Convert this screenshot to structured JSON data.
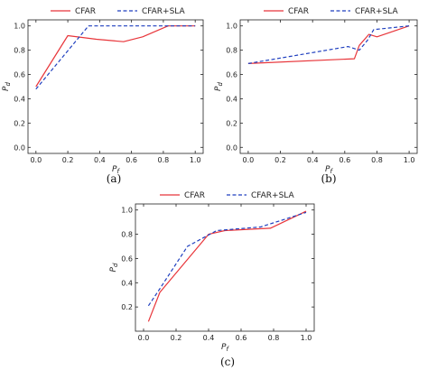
{
  "colors": {
    "cfar": "#e8353a",
    "cfar_sla": "#1f3fbf"
  },
  "chart_data": [
    {
      "id": "a",
      "type": "line",
      "caption": "(a)",
      "xlabel": "P_f",
      "ylabel": "P_d",
      "xlim": [
        -0.05,
        1.05
      ],
      "ylim": [
        -0.05,
        1.05
      ],
      "xticks": [
        "0.0",
        "0.2",
        "0.4",
        "0.6",
        "0.8",
        "1.0"
      ],
      "yticks": [
        "0.0",
        "0.2",
        "0.4",
        "0.6",
        "0.8",
        "1.0"
      ],
      "legend": "top",
      "series": [
        {
          "name": "CFAR",
          "style": "solid",
          "x": [
            0.0,
            0.2,
            0.38,
            0.55,
            0.67,
            0.83,
            1.0
          ],
          "y": [
            0.5,
            0.92,
            0.89,
            0.87,
            0.91,
            1.0,
            1.0
          ]
        },
        {
          "name": "CFAR+SLA",
          "style": "dashed",
          "x": [
            0.0,
            0.33,
            0.85,
            1.0
          ],
          "y": [
            0.48,
            1.0,
            1.0,
            1.0
          ]
        }
      ]
    },
    {
      "id": "b",
      "type": "line",
      "caption": "(b)",
      "xlabel": "P_f",
      "ylabel": "P_d",
      "xlim": [
        -0.05,
        1.05
      ],
      "ylim": [
        -0.05,
        1.05
      ],
      "xticks": [
        "0.0",
        "0.2",
        "0.4",
        "0.6",
        "0.8",
        "1.0"
      ],
      "yticks": [
        "0.0",
        "0.2",
        "0.4",
        "0.6",
        "0.8",
        "1.0"
      ],
      "legend": "top",
      "series": [
        {
          "name": "CFAR",
          "style": "solid",
          "x": [
            0.0,
            0.66,
            0.69,
            0.75,
            0.8,
            1.0
          ],
          "y": [
            0.69,
            0.73,
            0.84,
            0.93,
            0.91,
            1.0
          ]
        },
        {
          "name": "CFAR+SLA",
          "style": "dashed",
          "x": [
            0.0,
            0.62,
            0.69,
            0.74,
            0.78,
            1.0
          ],
          "y": [
            0.69,
            0.83,
            0.8,
            0.88,
            0.97,
            1.0
          ]
        }
      ]
    },
    {
      "id": "c",
      "type": "line",
      "caption": "(c)",
      "xlabel": "P_f",
      "ylabel": "P_d",
      "xlim": [
        -0.05,
        1.05
      ],
      "ylim": [
        0.0,
        1.05
      ],
      "xticks": [
        "0.0",
        "0.2",
        "0.4",
        "0.6",
        "0.8",
        "1.0"
      ],
      "yticks": [
        "0.2",
        "0.4",
        "0.6",
        "0.8",
        "1.0"
      ],
      "legend": "top",
      "series": [
        {
          "name": "CFAR",
          "style": "solid",
          "x": [
            0.03,
            0.1,
            0.4,
            0.5,
            0.78,
            1.0
          ],
          "y": [
            0.08,
            0.32,
            0.8,
            0.83,
            0.85,
            0.99
          ]
        },
        {
          "name": "CFAR+SLA",
          "style": "dashed",
          "x": [
            0.03,
            0.1,
            0.27,
            0.45,
            0.72,
            1.0
          ],
          "y": [
            0.21,
            0.35,
            0.7,
            0.83,
            0.86,
            0.98
          ]
        }
      ]
    }
  ]
}
